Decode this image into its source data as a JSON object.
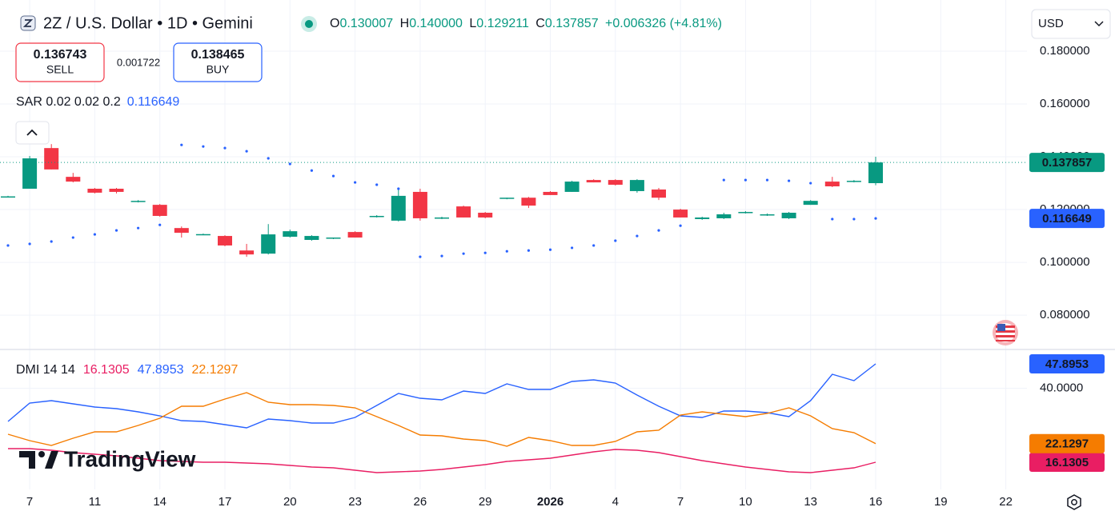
{
  "header": {
    "title": "2Z / U.S. Dollar • 1D • Gemini",
    "ohlc": [
      {
        "label": "O",
        "value": "0.130007"
      },
      {
        "label": "H",
        "value": "0.140000"
      },
      {
        "label": "L",
        "value": "0.129211"
      },
      {
        "label": "C",
        "value": "0.137857"
      }
    ],
    "change": "+0.006326 (+4.81%)"
  },
  "trade": {
    "sell_price": "0.136743",
    "sell": "SELL",
    "spread": "0.001722",
    "buy_price": "0.138465",
    "buy": "BUY"
  },
  "currency": "USD",
  "brand": "TradingView",
  "chart_data": [
    {
      "type": "candlestick",
      "categories": [
        null,
        "7",
        null,
        null,
        "11",
        null,
        null,
        "14",
        null,
        null,
        "17",
        null,
        null,
        "20",
        null,
        null,
        "23",
        null,
        null,
        "26",
        null,
        null,
        "29",
        null,
        null,
        "2026",
        null,
        null,
        "4",
        null,
        null,
        "7",
        null,
        null,
        "10",
        null,
        null,
        "13",
        null,
        null,
        "16",
        null,
        null,
        "19",
        null,
        null,
        "22"
      ],
      "open": [
        0.1249,
        0.1279,
        0.1433,
        0.1324,
        0.1279,
        0.1279,
        0.123,
        0.1218,
        0.113,
        0.1106,
        0.11,
        0.1045,
        0.1033,
        0.1097,
        0.1085,
        0.1091,
        0.1115,
        0.1173,
        0.1158,
        0.1267,
        0.1167,
        0.1212,
        0.1188,
        0.1242,
        0.1245,
        0.1267,
        0.1267,
        0.1312,
        0.1312,
        0.127,
        0.1276,
        0.12,
        0.1164,
        0.1167,
        0.1188,
        0.1179,
        0.1167,
        0.1218,
        0.1306,
        0.1306,
        0.130007,
        null,
        null,
        null,
        null,
        null,
        null
      ],
      "high": [
        0.1252,
        0.1403,
        0.1448,
        0.1339,
        0.1282,
        0.1282,
        0.1236,
        0.1221,
        0.1136,
        0.1109,
        0.1103,
        0.107,
        0.1145,
        0.1124,
        0.1103,
        0.1094,
        0.1118,
        0.1179,
        0.1279,
        0.1279,
        0.1173,
        0.1215,
        0.1191,
        0.1245,
        0.1248,
        0.127,
        0.1309,
        0.1315,
        0.1315,
        0.1315,
        0.1282,
        0.1203,
        0.1173,
        0.1188,
        0.1194,
        0.1185,
        0.1191,
        0.1236,
        0.1324,
        0.1312,
        0.14,
        null,
        null,
        null,
        null,
        null,
        null
      ],
      "low": [
        0.1246,
        0.1279,
        0.1352,
        0.1303,
        0.1261,
        0.1261,
        0.1227,
        0.1173,
        0.1094,
        0.1103,
        0.1061,
        0.1021,
        0.103,
        0.1094,
        0.1082,
        0.1088,
        0.1094,
        0.117,
        0.1155,
        0.1158,
        0.1164,
        0.117,
        0.1167,
        0.1239,
        0.1206,
        0.1255,
        0.1267,
        0.1303,
        0.1291,
        0.1264,
        0.1236,
        0.117,
        0.1161,
        0.1164,
        0.1185,
        0.1176,
        0.1164,
        0.1218,
        0.1285,
        0.1303,
        0.129211,
        null,
        null,
        null,
        null,
        null,
        null
      ],
      "close": [
        0.125,
        0.1394,
        0.1352,
        0.1306,
        0.1264,
        0.1267,
        0.1233,
        0.1176,
        0.1112,
        0.1107,
        0.1064,
        0.103,
        0.1106,
        0.1118,
        0.11,
        0.1094,
        0.1094,
        0.1176,
        0.1252,
        0.1167,
        0.117,
        0.117,
        0.117,
        0.1245,
        0.1215,
        0.1255,
        0.1306,
        0.1303,
        0.1294,
        0.1312,
        0.1245,
        0.117,
        0.117,
        0.1182,
        0.1191,
        0.1182,
        0.1188,
        0.1233,
        0.1288,
        0.1309,
        0.137857,
        null,
        null,
        null,
        null,
        null,
        null
      ],
      "up_color": "#089981",
      "down_color": "#f23645",
      "sar": {
        "label": "SAR 0.02 0.02 0.2",
        "color": "#2962ff",
        "values": [
          0.1064,
          0.107,
          0.1079,
          0.1094,
          0.1106,
          0.1121,
          0.113,
          0.1142,
          0.1445,
          0.1439,
          0.1433,
          0.1421,
          0.1394,
          0.1373,
          0.1348,
          0.1327,
          0.1303,
          0.1294,
          0.1279,
          0.1021,
          0.1024,
          0.1033,
          0.1036,
          0.1042,
          0.1045,
          0.1048,
          0.1055,
          0.1064,
          0.1082,
          0.11,
          0.1121,
          0.1139,
          null,
          0.1312,
          0.1312,
          0.1312,
          0.1309,
          0.13,
          0.1164,
          0.1164,
          0.116649,
          null,
          null,
          null,
          null,
          null,
          null
        ]
      },
      "ylim": [
        0.0673,
        0.1994
      ],
      "yticks": [
        {
          "value": 0.08,
          "label": "0.080000"
        },
        {
          "value": 0.1,
          "label": "0.100000"
        },
        {
          "value": 0.12,
          "label": "0.120000"
        },
        {
          "value": 0.14,
          "label": "0.140000"
        },
        {
          "value": 0.16,
          "label": "0.160000"
        },
        {
          "value": 0.18,
          "label": "0.180000"
        }
      ],
      "grid": true
    },
    {
      "type": "line",
      "label": "DMI 14 14",
      "series": [
        {
          "color": "#e91e63",
          "values": [
            20.52,
            20.52,
            20.0,
            19.23,
            18.71,
            18.19,
            17.42,
            16.64,
            16.38,
            16.13,
            16.13,
            15.87,
            15.61,
            15.09,
            14.58,
            14.32,
            13.54,
            12.77,
            13.02,
            13.28,
            13.8,
            14.58,
            15.35,
            16.38,
            16.9,
            17.42,
            18.45,
            19.48,
            20.26,
            20.0,
            19.23,
            17.93,
            16.64,
            15.61,
            14.58,
            13.8,
            13.02,
            12.77,
            13.54,
            14.32,
            16.1305,
            null,
            null,
            null,
            null,
            null,
            null
          ]
        },
        {
          "color": "#2962ff",
          "values": [
            29.3,
            35.24,
            36.01,
            34.98,
            33.95,
            33.43,
            32.4,
            31.11,
            29.56,
            29.3,
            28.27,
            27.23,
            30.07,
            29.56,
            28.78,
            28.78,
            30.59,
            34.46,
            38.34,
            36.79,
            36.27,
            39.11,
            38.34,
            41.44,
            39.63,
            39.63,
            42.21,
            42.73,
            41.7,
            37.82,
            34.21,
            31.11,
            30.59,
            32.66,
            32.66,
            32.14,
            30.85,
            36.01,
            44.54,
            42.47,
            47.8953,
            null,
            null,
            null,
            null,
            null,
            null
          ]
        },
        {
          "color": "#f57c00",
          "values": [
            25.17,
            23.1,
            21.55,
            23.87,
            25.94,
            25.94,
            28.01,
            30.33,
            34.21,
            34.21,
            36.53,
            38.6,
            35.5,
            34.72,
            34.72,
            34.46,
            33.69,
            30.85,
            28.01,
            24.91,
            24.65,
            23.62,
            23.1,
            21.29,
            24.13,
            23.1,
            21.55,
            21.55,
            22.84,
            25.94,
            26.46,
            31.37,
            32.4,
            31.62,
            30.85,
            31.88,
            33.69,
            31.11,
            26.97,
            25.68,
            22.1297,
            null,
            null,
            null,
            null,
            null,
            null
          ]
        }
      ],
      "ylim": [
        7.35,
        52.54
      ],
      "yticks": [
        {
          "value": 40,
          "label": "40.0000"
        }
      ],
      "grid": true
    }
  ]
}
